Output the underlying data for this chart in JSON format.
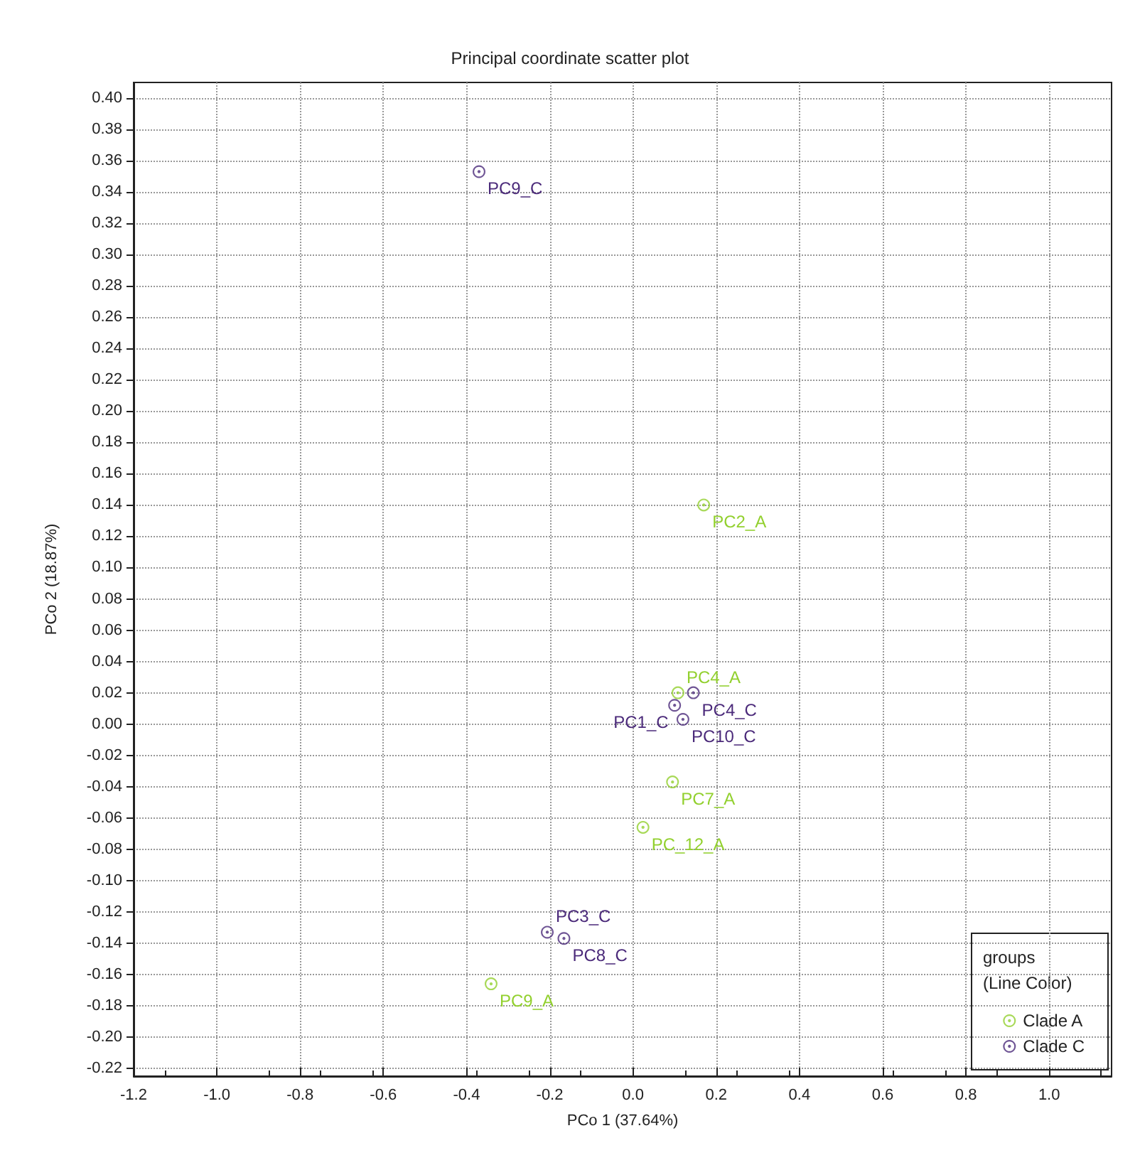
{
  "chart_data": {
    "type": "scatter",
    "title": "Principal coordinate scatter plot",
    "xlabel": "PCo 1 (37.64%)",
    "ylabel": "PCo 2 (18.87%)",
    "legend_title": "groups\n(Line Color)",
    "legend": "bottom right",
    "grid": true,
    "marker": "circle",
    "series": [
      {
        "name": "Clade A",
        "color": "#92d02e",
        "x": [
          0.17,
          0.108,
          0.095,
          0.024,
          -0.341
        ],
        "values": [
          0.14,
          0.02,
          -0.037,
          -0.066,
          -0.166
        ]
      },
      {
        "name": "Clade C",
        "color": "#4b2a7a",
        "x": [
          -0.37,
          0.145,
          0.1,
          0.12,
          -0.206,
          -0.166
        ],
        "values": [
          0.353,
          0.02,
          0.012,
          0.003,
          -0.133,
          -0.137
        ]
      }
    ],
    "annotations": [
      {
        "text": "PC2_A",
        "x": 0.17,
        "y": 0.14
      },
      {
        "text": "PC4_A",
        "x": 0.108,
        "y": 0.02
      },
      {
        "text": "PC7_A",
        "x": 0.095,
        "y": -0.037
      },
      {
        "text": "PC_12_A",
        "x": 0.024,
        "y": -0.066
      },
      {
        "text": "PC9_A",
        "x": -0.341,
        "y": -0.166
      },
      {
        "text": "PC9_C",
        "x": -0.37,
        "y": 0.353
      },
      {
        "text": "PC4_C",
        "x": 0.145,
        "y": 0.02
      },
      {
        "text": "PC1_C",
        "x": 0.1,
        "y": 0.012
      },
      {
        "text": "PC10_C",
        "x": 0.12,
        "y": 0.003
      },
      {
        "text": "PC3_C",
        "x": -0.206,
        "y": -0.133
      },
      {
        "text": "PC8_C",
        "x": -0.166,
        "y": -0.137
      }
    ],
    "xlim": [
      -1.2,
      1.15
    ],
    "xticks": [
      {
        "value": -1.2,
        "label": "-1.2"
      },
      {
        "value": -1.0,
        "label": "-1.0"
      },
      {
        "value": -0.8,
        "label": "-0.8"
      },
      {
        "value": -0.6,
        "label": "-0.6"
      },
      {
        "value": -0.4,
        "label": "-0.4"
      },
      {
        "value": -0.2,
        "label": "-0.2"
      },
      {
        "value": 0,
        "label": "0.0"
      },
      {
        "value": 0.2,
        "label": "0.2"
      },
      {
        "value": 0.4,
        "label": "0.4"
      },
      {
        "value": 0.6,
        "label": "0.6"
      },
      {
        "value": 0.8,
        "label": "0.8"
      },
      {
        "value": 1.0,
        "label": "1.0"
      }
    ],
    "ylim": [
      -0.225,
      0.41
    ],
    "yticks": [
      {
        "value": -0.22,
        "label": "-0.22"
      },
      {
        "value": -0.2,
        "label": "-0.20"
      },
      {
        "value": -0.18,
        "label": "-0.18"
      },
      {
        "value": -0.16,
        "label": "-0.16"
      },
      {
        "value": -0.14,
        "label": "-0.14"
      },
      {
        "value": -0.12,
        "label": "-0.12"
      },
      {
        "value": -0.1,
        "label": "-0.10"
      },
      {
        "value": -0.08,
        "label": "-0.08"
      },
      {
        "value": -0.06,
        "label": "-0.06"
      },
      {
        "value": -0.04,
        "label": "-0.04"
      },
      {
        "value": -0.02,
        "label": "-0.02"
      },
      {
        "value": 0,
        "label": "0.00"
      },
      {
        "value": 0.02,
        "label": "0.02"
      },
      {
        "value": 0.04,
        "label": "0.04"
      },
      {
        "value": 0.06,
        "label": "0.06"
      },
      {
        "value": 0.08,
        "label": "0.08"
      },
      {
        "value": 0.1,
        "label": "0.10"
      },
      {
        "value": 0.12,
        "label": "0.12"
      },
      {
        "value": 0.14,
        "label": "0.14"
      },
      {
        "value": 0.16,
        "label": "0.16"
      },
      {
        "value": 0.18,
        "label": "0.18"
      },
      {
        "value": 0.2,
        "label": "0.20"
      },
      {
        "value": 0.22,
        "label": "0.22"
      },
      {
        "value": 0.24,
        "label": "0.24"
      },
      {
        "value": 0.26,
        "label": "0.26"
      },
      {
        "value": 0.28,
        "label": "0.28"
      },
      {
        "value": 0.3,
        "label": "0.30"
      },
      {
        "value": 0.32,
        "label": "0.32"
      },
      {
        "value": 0.34,
        "label": "0.34"
      },
      {
        "value": 0.36,
        "label": "0.36"
      },
      {
        "value": 0.38,
        "label": "0.38"
      },
      {
        "value": 0.4,
        "label": "0.40"
      }
    ]
  }
}
